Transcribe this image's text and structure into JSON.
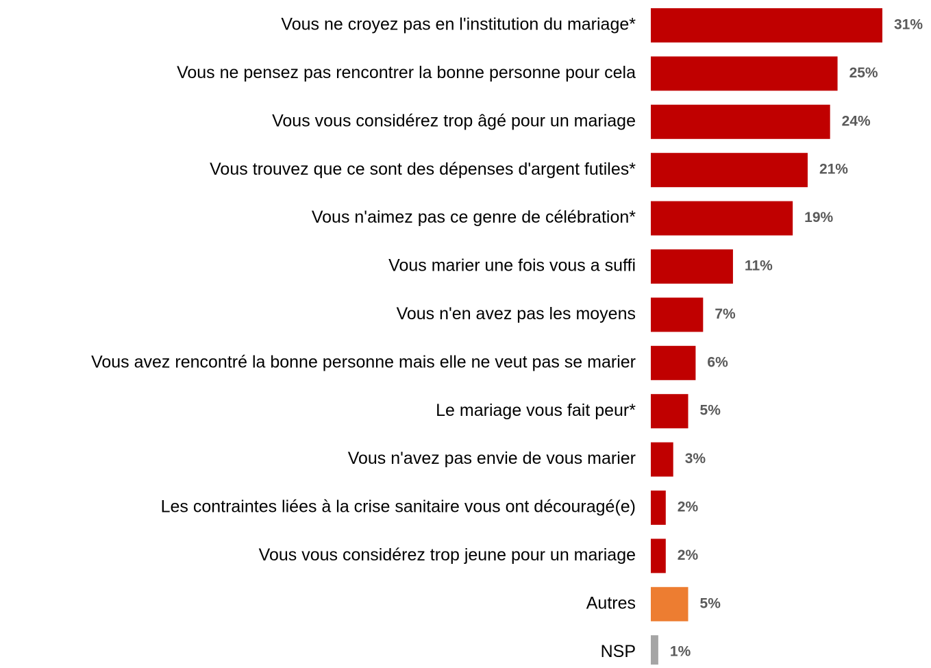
{
  "chart_data": {
    "type": "hbar",
    "categories": [
      "Vous ne croyez pas en l'institution du mariage*",
      "Vous ne pensez pas rencontrer la bonne personne pour cela",
      "Vous vous considérez trop âgé pour un mariage",
      "Vous trouvez que ce sont des dépenses d'argent futiles*",
      "Vous n'aimez pas ce genre de célébration*",
      "Vous marier une fois vous a suffi",
      "Vous n'en avez pas les moyens",
      "Vous avez rencontré la bonne personne mais elle ne veut pas se marier",
      "Le mariage vous fait peur*",
      "Vous n'avez pas envie de vous marier",
      "Les contraintes liées à la crise sanitaire vous ont découragé(e)",
      "Vous vous considérez trop jeune pour un mariage",
      "Autres",
      "NSP"
    ],
    "values": [
      31,
      25,
      24,
      21,
      19,
      11,
      7,
      6,
      5,
      3,
      2,
      2,
      5,
      1
    ],
    "value_labels": [
      "31%",
      "25%",
      "24%",
      "21%",
      "19%",
      "11%",
      "7%",
      "6%",
      "5%",
      "3%",
      "2%",
      "2%",
      "5%",
      "1%"
    ],
    "colors": [
      "#c00000",
      "#c00000",
      "#c00000",
      "#c00000",
      "#c00000",
      "#c00000",
      "#c00000",
      "#c00000",
      "#c00000",
      "#c00000",
      "#c00000",
      "#c00000",
      "#ed7d31",
      "#a5a5a5"
    ]
  }
}
